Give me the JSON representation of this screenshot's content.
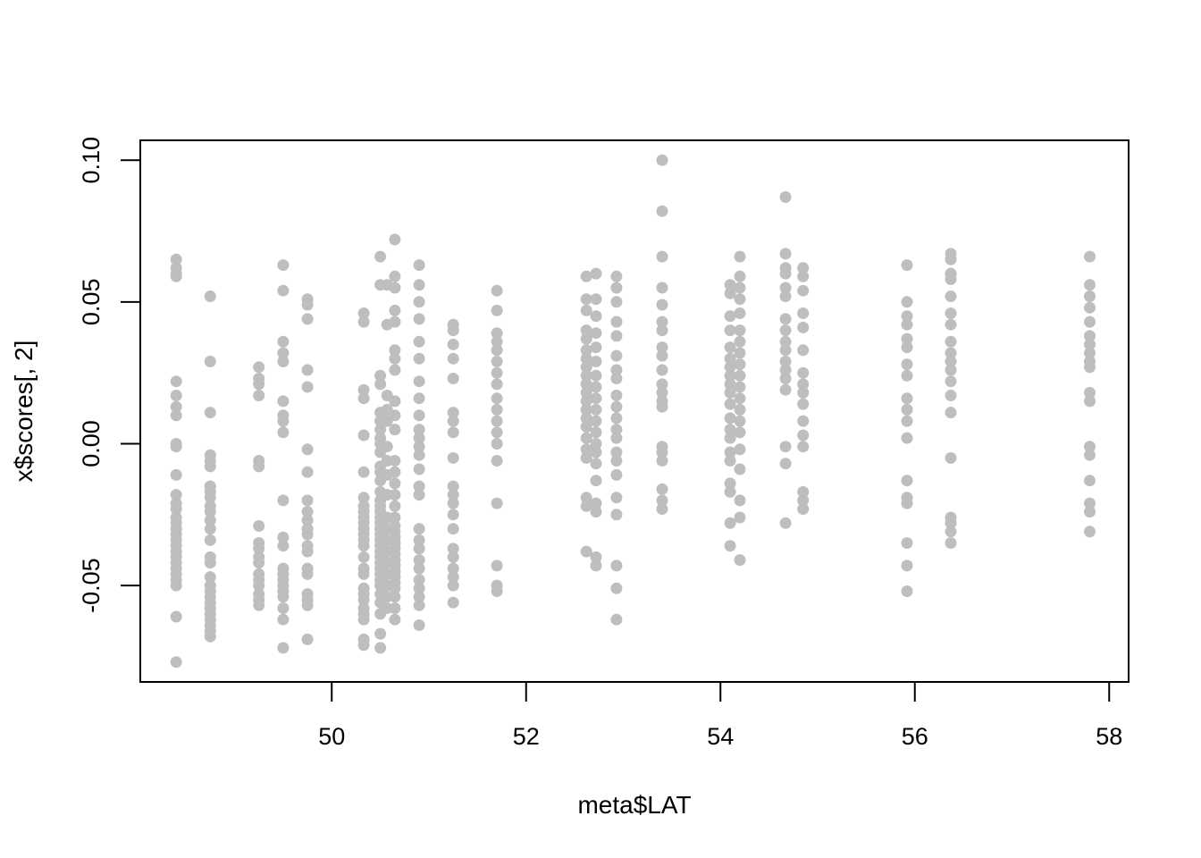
{
  "chart_data": {
    "type": "scatter",
    "xlabel": "meta$LAT",
    "ylabel": "x$scores[, 2]",
    "xlim": [
      48.03,
      58.2
    ],
    "ylim": [
      -0.084,
      0.107
    ],
    "x_ticks": [
      50,
      52,
      54,
      56,
      58
    ],
    "x_tick_labels": [
      "50",
      "52",
      "54",
      "56",
      "58"
    ],
    "y_ticks": [
      -0.05,
      0.0,
      0.05,
      0.1
    ],
    "y_tick_labels": [
      "-0.05",
      "0.00",
      "0.05",
      "0.10"
    ],
    "grid": false,
    "legend": "none",
    "point_color": "#bebebe",
    "axis_color": "#000000",
    "groups": [
      {
        "x": 48.4,
        "y": [
          0.065,
          0.062,
          0.06,
          0.059,
          0.022,
          0.017,
          0.013,
          0.01,
          0.0,
          -0.001,
          -0.011,
          -0.018,
          -0.021,
          -0.023,
          -0.026,
          -0.028,
          -0.03,
          -0.032,
          -0.034,
          -0.036,
          -0.038,
          -0.04,
          -0.042,
          -0.044,
          -0.046,
          -0.048,
          -0.05,
          -0.061,
          -0.077
        ]
      },
      {
        "x": 48.75,
        "y": [
          0.052,
          0.029,
          0.011,
          -0.004,
          -0.006,
          -0.008,
          -0.015,
          -0.017,
          -0.019,
          -0.022,
          -0.024,
          -0.027,
          -0.03,
          -0.034,
          -0.04,
          -0.042,
          -0.047,
          -0.05,
          -0.052,
          -0.054,
          -0.056,
          -0.058,
          -0.06,
          -0.062,
          -0.064,
          -0.066,
          -0.068
        ]
      },
      {
        "x": 49.25,
        "y": [
          0.027,
          0.023,
          0.021,
          0.017,
          -0.006,
          -0.008,
          -0.029,
          -0.035,
          -0.037,
          -0.04,
          -0.042,
          -0.046,
          -0.048,
          -0.05,
          -0.053,
          -0.055,
          -0.057
        ]
      },
      {
        "x": 49.5,
        "y": [
          0.063,
          0.054,
          0.036,
          0.032,
          0.029,
          0.015,
          0.01,
          0.008,
          0.004,
          -0.02,
          -0.033,
          -0.036,
          -0.044,
          -0.046,
          -0.048,
          -0.05,
          -0.052,
          -0.054,
          -0.058,
          -0.062,
          -0.072
        ]
      },
      {
        "x": 49.75,
        "y": [
          0.051,
          0.049,
          0.044,
          0.026,
          0.02,
          -0.002,
          -0.01,
          -0.02,
          -0.024,
          -0.027,
          -0.03,
          -0.032,
          -0.036,
          -0.038,
          -0.044,
          -0.046,
          -0.053,
          -0.055,
          -0.057,
          -0.069
        ]
      },
      {
        "x": 50.33,
        "y": [
          0.046,
          0.043,
          0.019,
          0.016,
          0.003,
          -0.01,
          -0.019,
          -0.022,
          -0.024,
          -0.026,
          -0.028,
          -0.03,
          -0.032,
          -0.034,
          -0.036,
          -0.04,
          -0.044,
          -0.046,
          -0.051,
          -0.053,
          -0.055,
          -0.058,
          -0.06,
          -0.062,
          -0.069,
          -0.071
        ]
      },
      {
        "x": 50.5,
        "y": [
          0.066,
          0.056,
          0.024,
          0.021,
          0.011,
          0.008,
          0.005,
          0.002,
          0.0,
          -0.003,
          -0.008,
          -0.01,
          -0.013,
          -0.017,
          -0.02,
          -0.022,
          -0.024,
          -0.026,
          -0.028,
          -0.03,
          -0.032,
          -0.034,
          -0.036,
          -0.038,
          -0.04,
          -0.042,
          -0.044,
          -0.046,
          -0.048,
          -0.05,
          -0.053,
          -0.056,
          -0.06,
          -0.067,
          -0.072
        ]
      },
      {
        "x": 50.57,
        "y": [
          0.056,
          0.042,
          0.017,
          0.012,
          0.008,
          -0.001,
          -0.006,
          -0.011,
          -0.018,
          -0.026,
          -0.03,
          -0.034,
          -0.038,
          -0.042,
          -0.046,
          -0.05,
          -0.054,
          -0.058
        ]
      },
      {
        "x": 50.65,
        "y": [
          0.072,
          0.059,
          0.055,
          0.047,
          0.043,
          0.033,
          0.03,
          0.026,
          0.015,
          0.01,
          0.005,
          -0.006,
          -0.01,
          -0.014,
          -0.018,
          -0.022,
          -0.026,
          -0.029,
          -0.031,
          -0.033,
          -0.035,
          -0.037,
          -0.039,
          -0.041,
          -0.043,
          -0.045,
          -0.047,
          -0.049,
          -0.051,
          -0.054,
          -0.058,
          -0.062
        ]
      },
      {
        "x": 50.9,
        "y": [
          0.063,
          0.056,
          0.05,
          0.044,
          0.036,
          0.03,
          0.022,
          0.016,
          0.01,
          0.005,
          0.002,
          -0.001,
          -0.004,
          -0.009,
          -0.015,
          -0.018,
          -0.03,
          -0.034,
          -0.037,
          -0.041,
          -0.044,
          -0.048,
          -0.051,
          -0.054,
          -0.057,
          -0.064
        ]
      },
      {
        "x": 51.25,
        "y": [
          0.042,
          0.04,
          0.035,
          0.03,
          0.023,
          0.011,
          0.008,
          0.004,
          -0.005,
          -0.015,
          -0.018,
          -0.021,
          -0.025,
          -0.03,
          -0.037,
          -0.04,
          -0.044,
          -0.047,
          -0.05,
          -0.056
        ]
      },
      {
        "x": 51.7,
        "y": [
          0.054,
          0.047,
          0.039,
          0.036,
          0.033,
          0.029,
          0.025,
          0.021,
          0.016,
          0.012,
          0.008,
          0.004,
          0.0,
          -0.006,
          -0.021,
          -0.043,
          -0.05,
          -0.052
        ]
      },
      {
        "x": 52.62,
        "y": [
          0.059,
          0.051,
          0.047,
          0.04,
          0.037,
          0.033,
          0.03,
          0.027,
          0.024,
          0.021,
          0.018,
          0.015,
          0.012,
          0.009,
          0.006,
          0.002,
          -0.002,
          -0.005,
          -0.019,
          -0.022,
          -0.038
        ]
      },
      {
        "x": 52.72,
        "y": [
          0.06,
          0.051,
          0.045,
          0.039,
          0.034,
          0.029,
          0.024,
          0.02,
          0.016,
          0.012,
          0.008,
          0.004,
          0.0,
          -0.003,
          -0.007,
          -0.013,
          -0.021,
          -0.024,
          -0.04,
          -0.043
        ]
      },
      {
        "x": 52.93,
        "y": [
          0.059,
          0.055,
          0.05,
          0.043,
          0.038,
          0.031,
          0.026,
          0.023,
          0.017,
          0.013,
          0.009,
          0.005,
          0.002,
          -0.003,
          -0.006,
          -0.011,
          -0.019,
          -0.025,
          -0.043,
          -0.051,
          -0.062
        ]
      },
      {
        "x": 53.4,
        "y": [
          0.1,
          0.082,
          0.066,
          0.055,
          0.049,
          0.043,
          0.04,
          0.034,
          0.031,
          0.026,
          0.021,
          0.018,
          0.015,
          0.013,
          -0.001,
          -0.003,
          -0.006,
          -0.016,
          -0.02,
          -0.023
        ]
      },
      {
        "x": 54.1,
        "y": [
          0.056,
          0.053,
          0.045,
          0.04,
          0.034,
          0.03,
          0.027,
          0.024,
          0.021,
          0.018,
          0.014,
          0.009,
          0.005,
          0.002,
          -0.003,
          -0.006,
          -0.014,
          -0.017,
          -0.028,
          -0.036
        ]
      },
      {
        "x": 54.2,
        "y": [
          0.066,
          0.059,
          0.055,
          0.051,
          0.046,
          0.04,
          0.036,
          0.032,
          0.028,
          0.024,
          0.02,
          0.016,
          0.012,
          0.008,
          0.004,
          -0.002,
          -0.009,
          -0.02,
          -0.026,
          -0.041
        ]
      },
      {
        "x": 54.67,
        "y": [
          0.087,
          0.067,
          0.062,
          0.06,
          0.055,
          0.052,
          0.044,
          0.04,
          0.036,
          0.033,
          0.029,
          0.026,
          0.023,
          0.019,
          -0.001,
          -0.007,
          -0.028
        ]
      },
      {
        "x": 54.85,
        "y": [
          0.062,
          0.059,
          0.054,
          0.046,
          0.041,
          0.033,
          0.025,
          0.021,
          0.018,
          0.014,
          0.008,
          0.003,
          -0.001,
          -0.017,
          -0.02,
          -0.023
        ]
      },
      {
        "x": 55.92,
        "y": [
          0.063,
          0.05,
          0.045,
          0.042,
          0.037,
          0.034,
          0.028,
          0.024,
          0.016,
          0.012,
          0.008,
          0.002,
          -0.013,
          -0.019,
          -0.021,
          -0.035,
          -0.043,
          -0.052
        ]
      },
      {
        "x": 56.37,
        "y": [
          0.067,
          0.065,
          0.06,
          0.058,
          0.052,
          0.046,
          0.042,
          0.036,
          0.032,
          0.029,
          0.026,
          0.022,
          0.017,
          0.011,
          -0.005,
          -0.026,
          -0.028,
          -0.031,
          -0.035
        ]
      },
      {
        "x": 57.8,
        "y": [
          0.066,
          0.056,
          0.052,
          0.048,
          0.043,
          0.038,
          0.035,
          0.032,
          0.029,
          0.027,
          0.018,
          0.015,
          -0.001,
          -0.004,
          -0.013,
          -0.021,
          -0.024,
          -0.031
        ]
      }
    ]
  }
}
